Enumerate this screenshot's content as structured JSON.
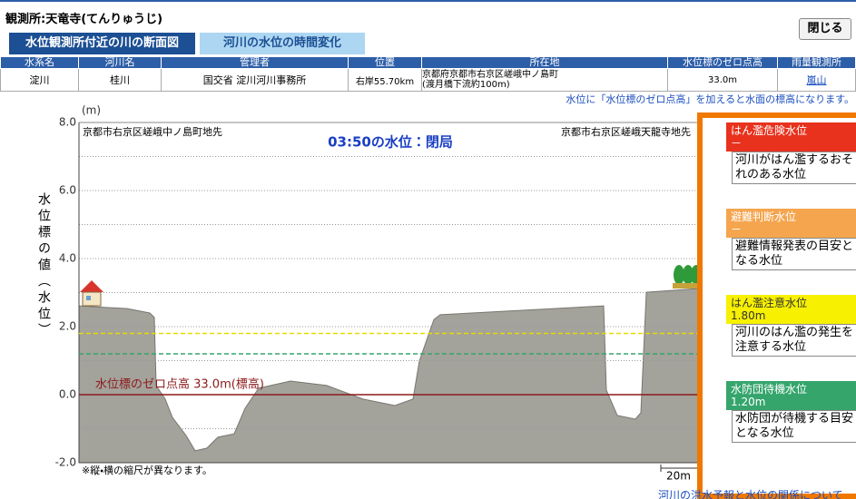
{
  "header": {
    "title": "観測所:天竜寺(てんりゅうじ)",
    "close_button": "閉じる"
  },
  "tabs": [
    "水位観測所付近の川の断面図",
    "河川の水位の時間変化"
  ],
  "table": {
    "columns": [
      "水系名",
      "河川名",
      "管理者",
      "位置",
      "所在地",
      "水位標のゼロ点高",
      "雨量観測所"
    ],
    "row": {
      "system": "淀川",
      "river": "桂川",
      "manager": "国交省 淀川河川事務所",
      "position": "右岸55.70km",
      "location": [
        "京都府京都市右京区嵯峨中ノ島町",
        "(渡月橋下流約100m)"
      ],
      "zero_height": "33.0m",
      "rain_station": "嵐山"
    }
  },
  "note": "水位に「水位標のゼロ点高」を加えると水面の標高になります。",
  "chart_data": {
    "type": "area",
    "unit_label": "(m)",
    "y_label": "水位標の値（水位）",
    "left_bank": "京都市右京区嵯峨中ノ島町地先",
    "right_bank": "京都市右京区嵯峨天龍寺地先",
    "status": "03:50の水位：閉局",
    "ylim": [
      -2,
      8
    ],
    "yticks": [
      {
        "value": 8,
        "label": "8.0"
      },
      {
        "value": 6,
        "label": "6.0"
      },
      {
        "value": 4,
        "label": "4.0"
      },
      {
        "value": 2,
        "label": "2.0"
      },
      {
        "value": 0,
        "label": "0.0"
      },
      {
        "value": -2,
        "label": "-2.0"
      }
    ],
    "minor_yticks": [
      7,
      5,
      3,
      1,
      -1
    ],
    "grid": true,
    "xlim": [
      0,
      341.5
    ],
    "x": [
      0,
      26.5,
      39,
      41.5,
      42.5,
      47.5,
      51.5,
      59,
      64,
      70.5,
      76.5,
      85.5,
      91.5,
      99,
      116.5,
      136.5,
      156.5,
      174,
      184,
      187.5,
      195.5,
      199,
      289,
      290.5,
      296.5,
      306.5,
      309.5,
      312.5,
      341.5
    ],
    "values": [
      2.61,
      2.53,
      2.4,
      2.27,
      0.27,
      -0.13,
      -0.67,
      -1.2,
      -1.65,
      -1.57,
      -1.25,
      -1.15,
      -0.4,
      0.19,
      0.4,
      0.27,
      -0.13,
      -0.32,
      -0.13,
      0.99,
      2.21,
      2.35,
      2.61,
      0.13,
      -0.61,
      -0.72,
      -0.53,
      3.01,
      3.12
    ],
    "color": "#a3a29b",
    "zero_line": {
      "value": 0,
      "label": "水位標のゼロ点高 33.0m(標高)",
      "color": "#8b1a1a"
    },
    "scale_note": "※縦・横の縮尺が異なります。",
    "scale_bar": "20m"
  },
  "levels": [
    {
      "name": "はん濫危険水位",
      "value_label": "－",
      "description": "河川がはん濫するおそれのある水位",
      "color": "#e8321e",
      "text_color": "#ffffff"
    },
    {
      "name": "避難判断水位",
      "value_label": "－",
      "description": "避難情報発表の目安となる水位",
      "color": "#f5a54e",
      "text_color": "#ffffff"
    },
    {
      "name": "はん濫注意水位",
      "value": 1.8,
      "value_label": "1.80m",
      "description": "河川のはん濫の発生を注意する水位",
      "color": "#f7f000",
      "text_color": "#333333"
    },
    {
      "name": "水防団待機水位",
      "value": 1.2,
      "value_label": "1.20m",
      "description": "水防団が待機する目安となる水位",
      "color": "#35a56c",
      "text_color": "#ffffff"
    }
  ],
  "footer_link": "河川の洪水予報と水位の関係について"
}
